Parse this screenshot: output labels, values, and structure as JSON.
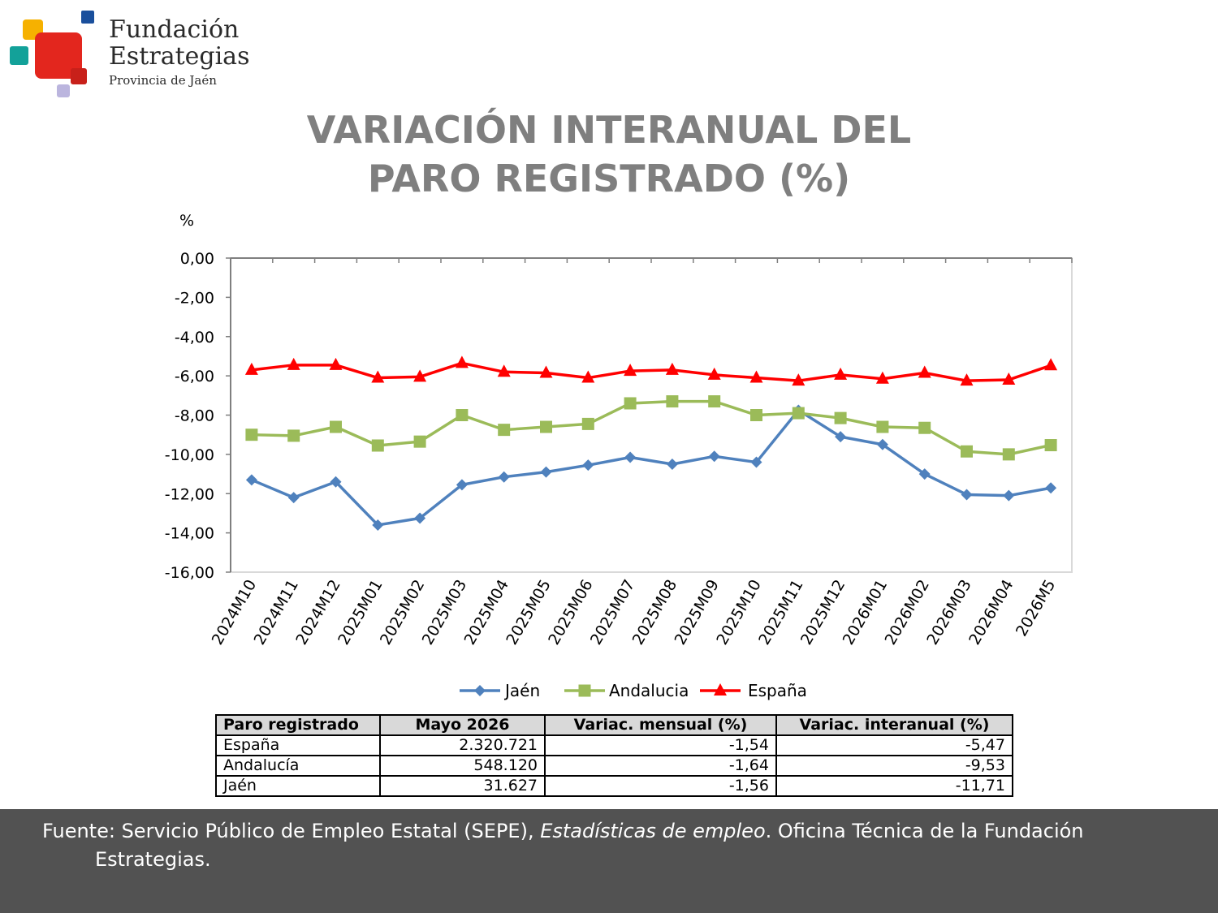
{
  "logo": {
    "line1": "Fundación",
    "line2": "Estrategias",
    "line3": "Provincia de Jaén"
  },
  "title": {
    "line1": "VARIACIÓN INTERANUAL DEL",
    "line2": "PARO REGISTRADO (%)"
  },
  "chart_data": {
    "type": "line",
    "ylabel": "%",
    "ylim": [
      -16,
      0
    ],
    "ytick_step": 2,
    "grid": false,
    "legend_position": "bottom",
    "categories": [
      "2024M10",
      "2024M11",
      "2024M12",
      "2025M01",
      "2025M02",
      "2025M03",
      "2025M04",
      "2025M05",
      "2025M06",
      "2025M07",
      "2025M08",
      "2025M09",
      "2025M10",
      "2025M11",
      "2025M12",
      "2026M01",
      "2026M02",
      "2026M03",
      "2026M04",
      "2026M5"
    ],
    "series": [
      {
        "name": "Jaén",
        "color": "#4f81bd",
        "marker": "diamond",
        "values": [
          -11.3,
          -12.2,
          -11.4,
          -13.6,
          -13.25,
          -11.55,
          -11.15,
          -10.9,
          -10.55,
          -10.15,
          -10.5,
          -10.1,
          -10.4,
          -7.75,
          -9.1,
          -9.5,
          -11.0,
          -12.05,
          -12.1,
          -11.71
        ]
      },
      {
        "name": "Andalucia",
        "color": "#9bbb59",
        "marker": "square",
        "values": [
          -9.0,
          -9.05,
          -8.6,
          -9.55,
          -9.35,
          -8.0,
          -8.75,
          -8.6,
          -8.45,
          -7.4,
          -7.3,
          -7.3,
          -8.0,
          -7.9,
          -8.15,
          -8.6,
          -8.65,
          -9.85,
          -10.0,
          -9.53
        ]
      },
      {
        "name": "España",
        "color": "#ff0000",
        "marker": "triangle",
        "values": [
          -5.7,
          -5.45,
          -5.45,
          -6.1,
          -6.05,
          -5.35,
          -5.8,
          -5.85,
          -6.1,
          -5.75,
          -5.7,
          -5.95,
          -6.1,
          -6.25,
          -5.95,
          -6.15,
          -5.85,
          -6.25,
          -6.2,
          -5.47
        ]
      }
    ]
  },
  "table": {
    "headers": [
      "Paro registrado",
      "Mayo 2026",
      "Variac. mensual (%)",
      "Variac. interanual (%)"
    ],
    "rows": [
      [
        "España",
        "2.320.721",
        "-1,54",
        "-5,47"
      ],
      [
        "Andalucía",
        "548.120",
        "-1,64",
        "-9,53"
      ],
      [
        "Jaén",
        "31.627",
        "-1,56",
        "-11,71"
      ]
    ]
  },
  "footer": {
    "prefix": "Fuente: Servicio Público de Empleo Estatal (SEPE), ",
    "italic": "Estadísticas de empleo",
    "suffix": ". Oficina Técnica de la Fundación",
    "line2": "Estrategias."
  }
}
